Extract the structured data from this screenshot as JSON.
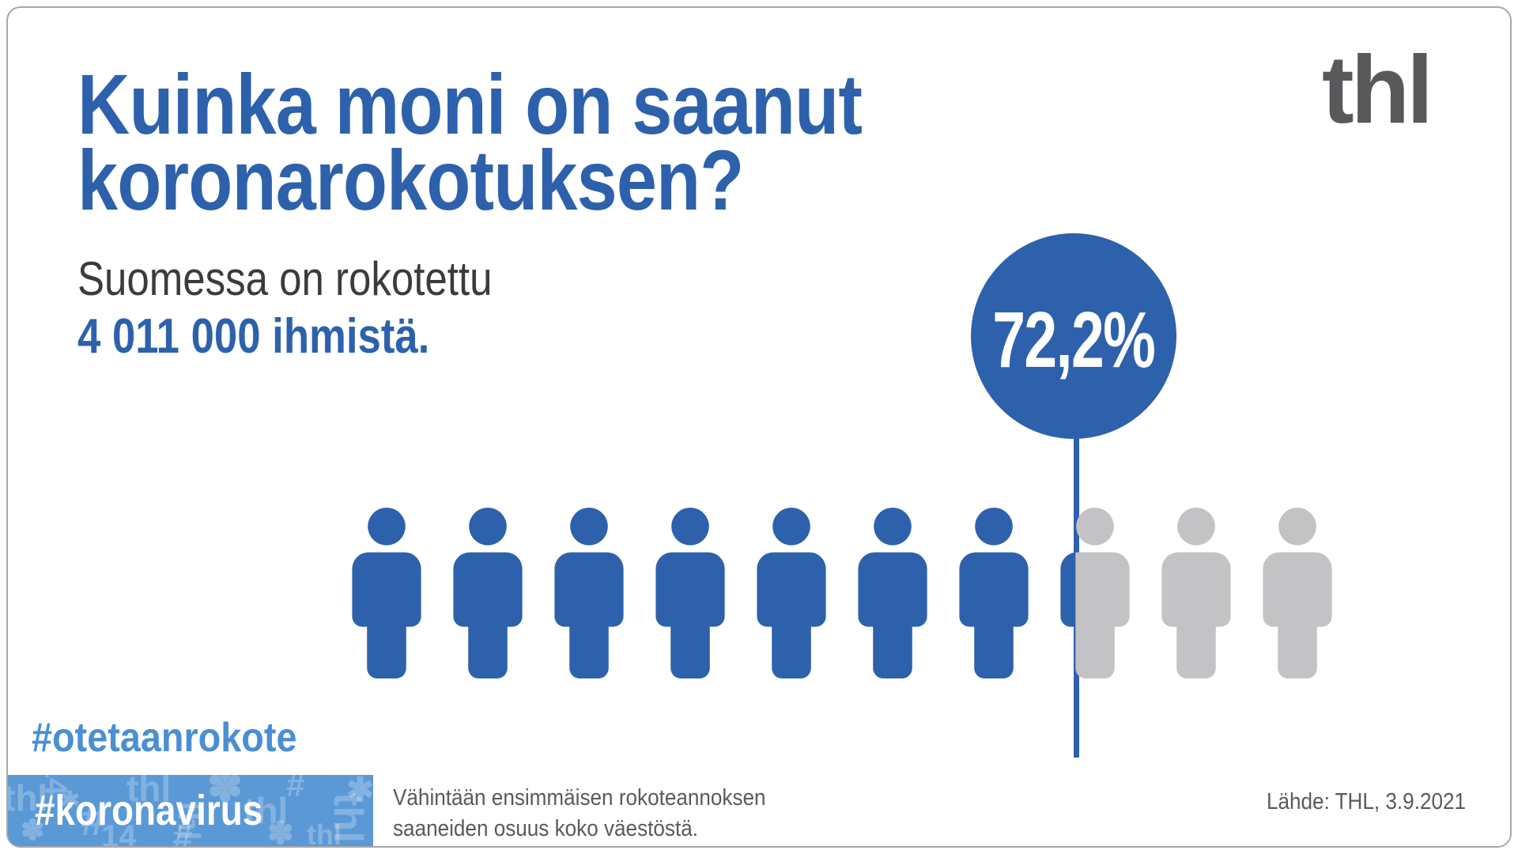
{
  "header": {
    "title_line1": "Kuinka moni on saanut",
    "title_line2": "koronarokotuksen?",
    "logo_text": "thl"
  },
  "subtitle": {
    "line1": "Suomessa on rokotettu",
    "line2": "4 011 000 ihmistä."
  },
  "badge": {
    "percent": "72,2%"
  },
  "hashtags": {
    "first": "#otetaanrokote",
    "second": "#koronavirus"
  },
  "banner": {
    "pattern_motifs": [
      "thl",
      "#",
      "✽",
      "14",
      "✱"
    ]
  },
  "footer": {
    "note_line1": "Vähintään ensimmäisen rokoteannoksen",
    "note_line2": "saaneiden osuus koko väestöstä.",
    "source": "Lähde: THL, 3.9.2021"
  },
  "colors": {
    "brand_blue": "#2e61ac",
    "light_blue": "#4a8fd3",
    "banner_blue": "#5b99d6",
    "icon_gray": "#c3c3c5",
    "text_dark": "#3b3b3b",
    "text_gray": "#5a5a5a",
    "logo_gray": "#58595b"
  },
  "chart_data": {
    "type": "pictograph",
    "title": "Kuinka moni on saanut koronarokotuksen?",
    "value_pct": 72.2,
    "value_label": "72,2%",
    "vaccinated_people": "4 011 000",
    "icons_total": 10,
    "icons_filled": 7.22,
    "filled_color": "#2e61ac",
    "unfilled_color": "#c3c3c5",
    "note": "Vähintään ensimmäisen rokoteannoksen saaneiden osuus koko väestöstä.",
    "source": "Lähde: THL, 3.9.2021",
    "legend_position": "none",
    "grid": false
  }
}
